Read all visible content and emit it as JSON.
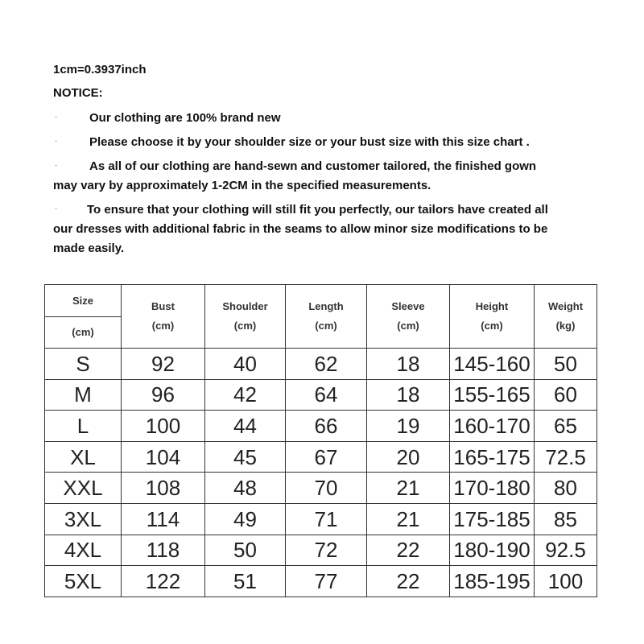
{
  "conversion": "1cm=0.3937inch",
  "notice_title": "NOTICE:",
  "bullet_char": "·",
  "notices": [
    {
      "lines": [
        "Our clothing are 100% brand new"
      ]
    },
    {
      "lines": [
        "Please choose it by your shoulder size or your bust size with this size chart ."
      ]
    },
    {
      "lines": [
        "As all of our clothing are hand-sewn and customer tailored, the finished gown",
        "may vary by approximately 1-2CM in the specified measurements."
      ]
    },
    {
      "lines": [
        "To ensure that your clothing will still fit you perfectly, our tailors have created all",
        "our dresses with additional fabric in the seams to allow minor size modifications to be",
        "made easily."
      ]
    }
  ],
  "table": {
    "size_header": {
      "label": "Size",
      "unit": "(cm)"
    },
    "headers": [
      {
        "label": "Bust",
        "unit": "(cm)"
      },
      {
        "label": "Shoulder",
        "unit": "(cm)"
      },
      {
        "label": "Length",
        "unit": "(cm)"
      },
      {
        "label": "Sleeve",
        "unit": "(cm)"
      },
      {
        "label": "Height",
        "unit": "(cm)"
      },
      {
        "label": "Weight",
        "unit": "(kg)"
      }
    ],
    "rows": [
      [
        "S",
        "92",
        "40",
        "62",
        "18",
        "145-160",
        "50"
      ],
      [
        "M",
        "96",
        "42",
        "64",
        "18",
        "155-165",
        "60"
      ],
      [
        "L",
        "100",
        "44",
        "66",
        "19",
        "160-170",
        "65"
      ],
      [
        "XL",
        "104",
        "45",
        "67",
        "20",
        "165-175",
        "72.5"
      ],
      [
        "XXL",
        "108",
        "48",
        "70",
        "21",
        "170-180",
        "80"
      ],
      [
        "3XL",
        "114",
        "49",
        "71",
        "21",
        "175-185",
        "85"
      ],
      [
        "4XL",
        "118",
        "50",
        "72",
        "22",
        "180-190",
        "92.5"
      ],
      [
        "5XL",
        "122",
        "51",
        "77",
        "22",
        "185-195",
        "100"
      ]
    ]
  }
}
